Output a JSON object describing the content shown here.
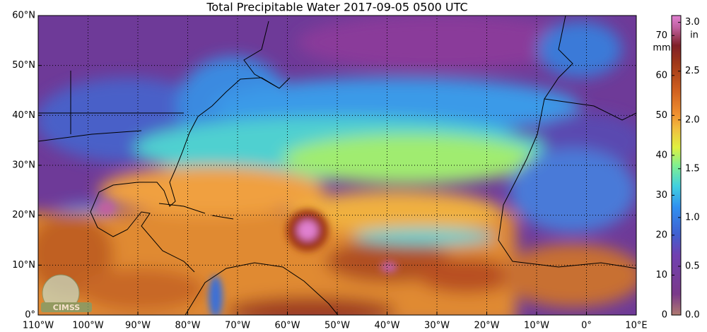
{
  "title": "Total Precipitable Water  2017-09-05 0500 UTC",
  "map": {
    "lonlim": [
      -110,
      10
    ],
    "latlim": [
      0,
      60
    ],
    "lat_ticks": [
      {
        "value": 0,
        "label": "0°"
      },
      {
        "value": 10,
        "label": "10°N"
      },
      {
        "value": 20,
        "label": "20°N"
      },
      {
        "value": 30,
        "label": "30°N"
      },
      {
        "value": 40,
        "label": "40°N"
      },
      {
        "value": 50,
        "label": "50°N"
      },
      {
        "value": 60,
        "label": "60°N"
      }
    ],
    "lon_ticks": [
      {
        "value": -110,
        "label": "110°W"
      },
      {
        "value": -100,
        "label": "100°W"
      },
      {
        "value": -90,
        "label": "90°W"
      },
      {
        "value": -80,
        "label": "80°W"
      },
      {
        "value": -70,
        "label": "70°W"
      },
      {
        "value": -60,
        "label": "60°W"
      },
      {
        "value": -50,
        "label": "50°W"
      },
      {
        "value": -40,
        "label": "40°W"
      },
      {
        "value": -30,
        "label": "30°W"
      },
      {
        "value": -20,
        "label": "20°W"
      },
      {
        "value": -10,
        "label": "10°W"
      },
      {
        "value": 0,
        "label": "0°"
      },
      {
        "value": 10,
        "label": "10°E"
      }
    ],
    "logo": "CIMSS"
  },
  "colorbar": {
    "mm_label": "mm",
    "in_label": "in",
    "mm_lim": [
      0,
      75
    ],
    "mm_ticks": [
      0,
      10,
      20,
      30,
      40,
      50,
      60,
      70
    ],
    "in_lim": [
      0,
      3.07
    ],
    "in_ticks": [
      {
        "value": 0,
        "label": "0.0"
      },
      {
        "value": 0.5,
        "label": "0.5"
      },
      {
        "value": 1,
        "label": "1.0"
      },
      {
        "value": 1.5,
        "label": "1.5"
      },
      {
        "value": 2,
        "label": "2.0"
      },
      {
        "value": 2.5,
        "label": "2.5"
      },
      {
        "value": 3,
        "label": "3.0"
      }
    ]
  }
}
